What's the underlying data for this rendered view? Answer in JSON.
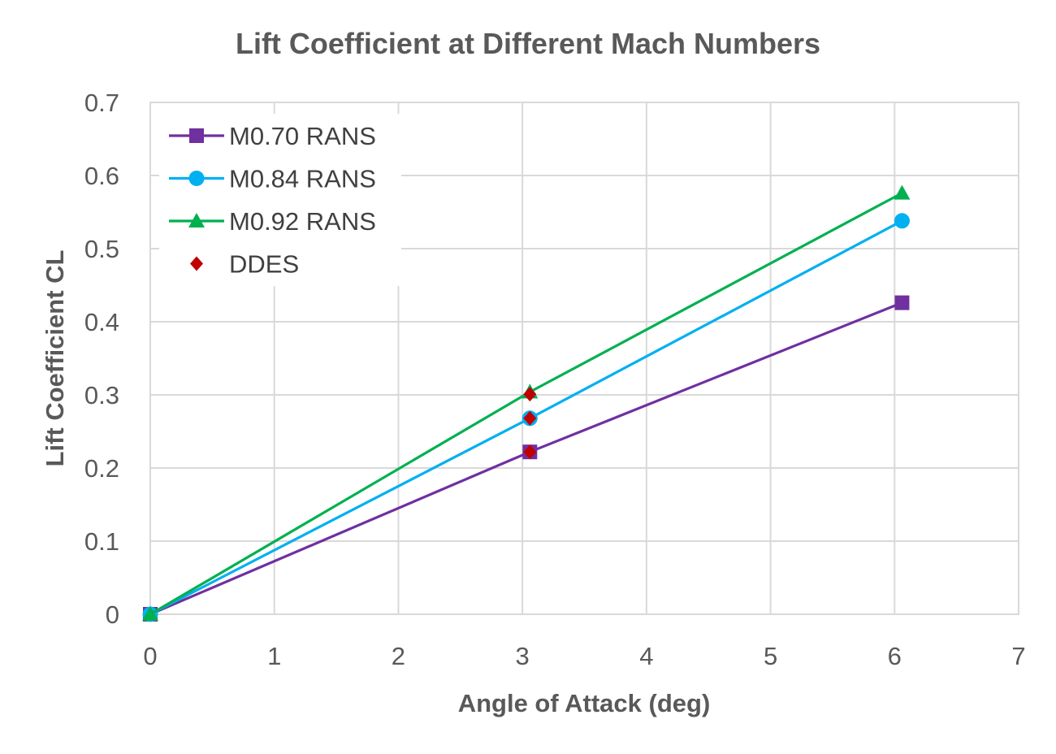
{
  "chart_data": {
    "type": "line",
    "title": "Lift Coefficient at Different Mach Numbers",
    "xlabel": "Angle of Attack (deg)",
    "ylabel": "Lift Coefficient CL",
    "xlim": [
      0,
      7
    ],
    "ylim": [
      0,
      0.7
    ],
    "x_ticks": [
      "0",
      "1",
      "2",
      "3",
      "4",
      "5",
      "6",
      "7"
    ],
    "y_ticks": [
      "0",
      "0.1",
      "0.2",
      "0.3",
      "0.4",
      "0.5",
      "0.6",
      "0.7"
    ],
    "grid": true,
    "legend_position": "top-left",
    "series": [
      {
        "name": "M0.70 RANS",
        "color": "#7030a0",
        "marker": "square",
        "line": true,
        "points": [
          [
            0,
            0.0
          ],
          [
            3.06,
            0.222
          ],
          [
            6.06,
            0.426
          ]
        ]
      },
      {
        "name": "M0.84 RANS",
        "color": "#00b0f0",
        "marker": "circle",
        "line": true,
        "points": [
          [
            0,
            0.0
          ],
          [
            3.06,
            0.268
          ],
          [
            6.06,
            0.538
          ]
        ]
      },
      {
        "name": "M0.92 RANS",
        "color": "#00b050",
        "marker": "triangle",
        "line": true,
        "points": [
          [
            0,
            0.0
          ],
          [
            3.06,
            0.304
          ],
          [
            6.06,
            0.576
          ]
        ]
      },
      {
        "name": "DDES",
        "color": "#c00000",
        "marker": "diamond",
        "line": false,
        "points": [
          [
            3.06,
            0.222
          ],
          [
            3.06,
            0.268
          ],
          [
            3.06,
            0.301
          ]
        ]
      }
    ]
  }
}
